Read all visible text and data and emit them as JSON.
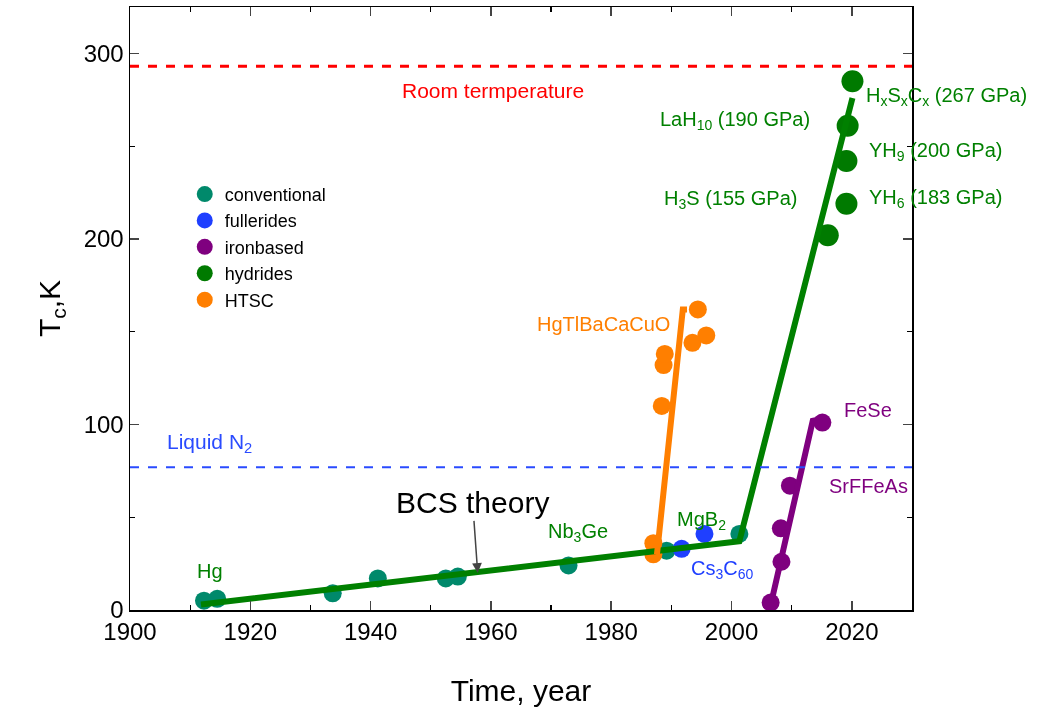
{
  "chart_data": {
    "type": "scatter",
    "xlabel": "Time, year",
    "ylabel": "T$_{c}$,K",
    "xlim": [
      1900,
      2030
    ],
    "xticks": [
      1900,
      1920,
      1940,
      1960,
      1980,
      2000,
      2020
    ],
    "ylim": [
      0,
      325
    ],
    "yticks": [
      0,
      100,
      200,
      300
    ],
    "grid": false,
    "legend": "top left",
    "marker": "circle",
    "series": [
      {
        "name": "conventional",
        "color": "#00896b",
        "x": [
          1912.3,
          1914.5,
          1933.7,
          1941.2,
          1952.5,
          1954.5,
          1972.9,
          1989.2,
          2001.3
        ],
        "values": [
          5,
          6,
          9,
          17,
          17,
          18,
          24,
          32,
          41
        ]
      },
      {
        "name": "fullerides",
        "color": "#1f3fff",
        "x": [
          1991.7,
          1995.5
        ],
        "values": [
          33,
          41
        ]
      },
      {
        "name": "ironbased",
        "color": "#7f007f",
        "x": [
          2006.5,
          2008.3,
          2008.2,
          2009.7,
          2015.1
        ],
        "values": [
          4,
          26,
          44,
          67,
          101
        ]
      },
      {
        "name": "hydrides",
        "color": "#007a00",
        "x": [
          2016.0,
          2019.1,
          2019.1,
          2019.3,
          2020.1
        ],
        "values": [
          202,
          219,
          242,
          261,
          285
        ]
      },
      {
        "name": "HTSC",
        "color": "#ff7f00",
        "x": [
          1987.0,
          1987.0,
          1988.4,
          1988.7,
          1988.9,
          1993.5,
          1995.8,
          1994.4
        ],
        "values": [
          30,
          36,
          110,
          132,
          138,
          144,
          148,
          162
        ]
      },
      {
        "type": "line",
        "marker": "none",
        "color": "#008000",
        "x": [
          1911.8,
          2001.3,
          2020.1
        ],
        "values": [
          3,
          37,
          276
        ]
      },
      {
        "type": "line",
        "marker": "none",
        "color": "#ff7f00",
        "x": [
          1987.6,
          1991.9,
          1992.6
        ],
        "values": [
          30,
          162,
          162
        ]
      },
      {
        "type": "line",
        "marker": "none",
        "color": "#7f007f",
        "x": [
          2006.6,
          2013.5,
          2015.0
        ],
        "values": [
          4,
          102,
          103
        ]
      }
    ],
    "ref_lines": [
      {
        "axis": "y",
        "value": 293,
        "label": "Room termperature",
        "color": "#ff0000",
        "line_style": "dashed"
      },
      {
        "axis": "y",
        "value": 77,
        "label": "Liquid N$_{2}$",
        "color": "#2a4bff",
        "line_style": "dashed"
      }
    ],
    "annotations": [
      {
        "text": "BCS theory",
        "x": 1957.8,
        "y": 20
      },
      "Hg",
      "Nb$_{3}$Ge",
      "MgB$_{2}$",
      "Cs$_{3}$C$_{60}$",
      "HgTlBaCaCuO",
      "FeSe",
      "SrFFeAs",
      "H$_{x}$S$_{x}$C$_{x}$ (267 GPa)",
      "LaH$_{10}$ (190 GPa)",
      "YH$_{9}$ (200 GPa)",
      "YH$_{6}$ (183 GPa)",
      "H$_{3}$S (155 GPa)"
    ]
  }
}
